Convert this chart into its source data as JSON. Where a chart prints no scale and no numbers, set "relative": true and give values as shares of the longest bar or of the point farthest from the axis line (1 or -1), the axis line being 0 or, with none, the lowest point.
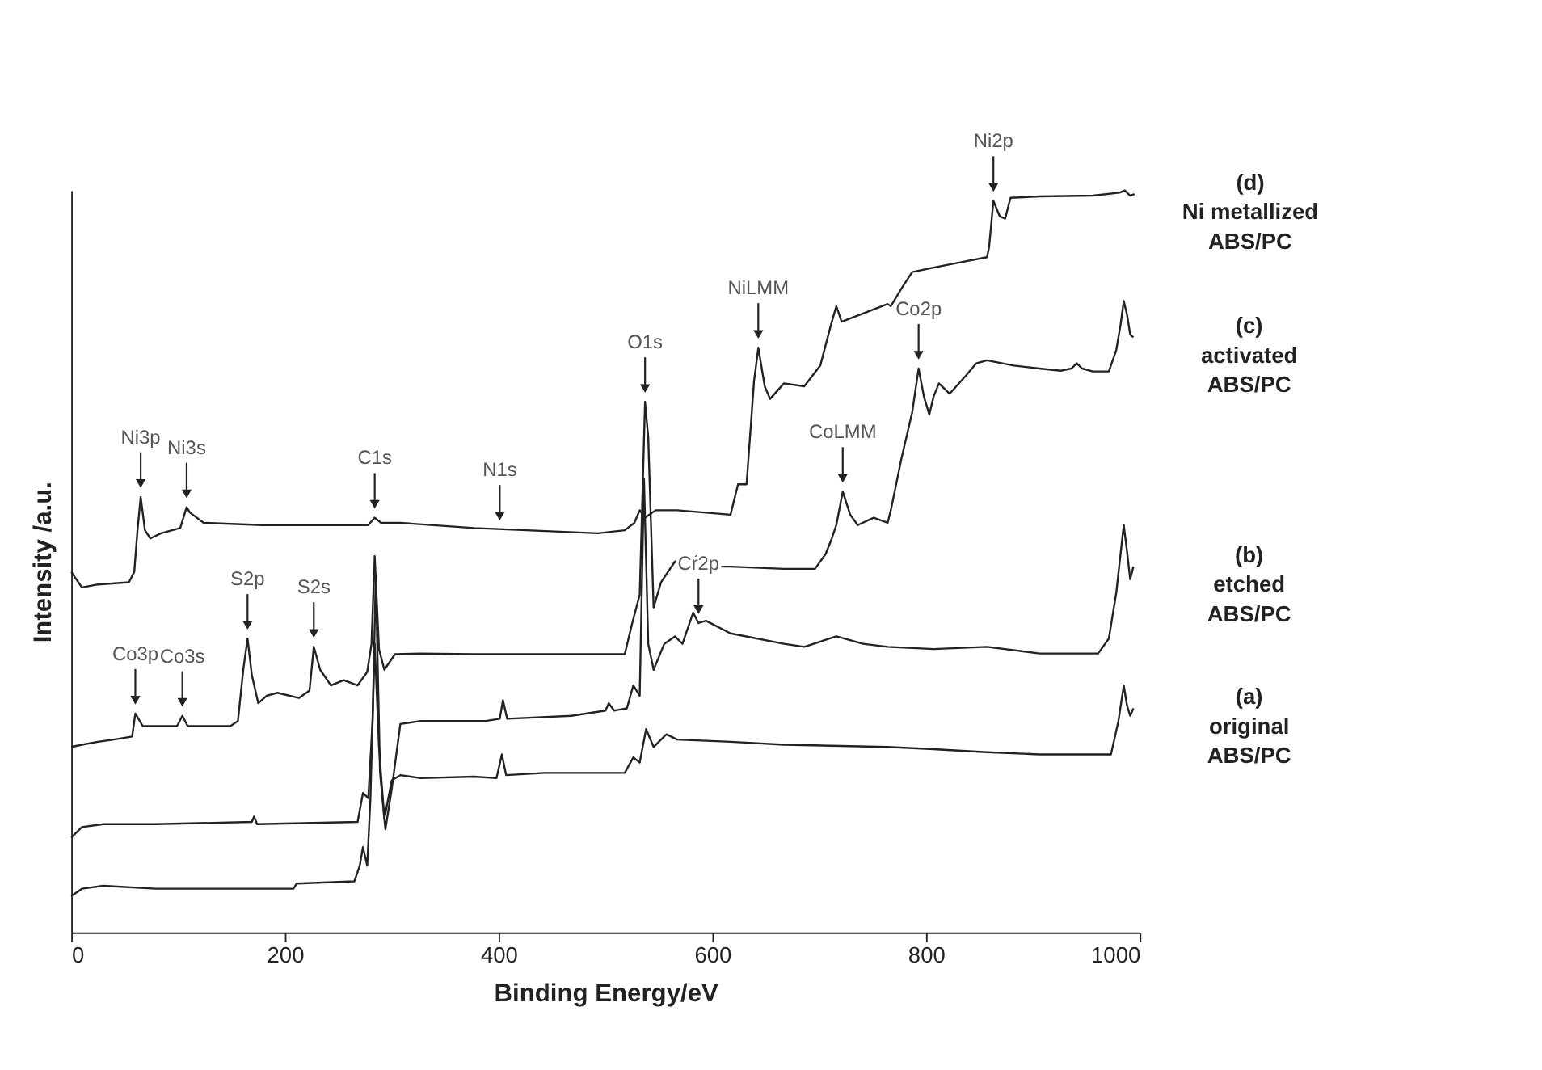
{
  "chart_data": {
    "type": "line",
    "relative": true,
    "xlabel": "Binding Energy/eV",
    "ylabel": "Intensity /a.u.",
    "xlim": [
      0,
      1000
    ],
    "xticks": [
      0,
      200,
      400,
      600,
      800,
      1000
    ],
    "grid": false,
    "series": [
      {
        "name": "(a)\noriginal\nABS/PC",
        "color": "#222222",
        "x": [
          0,
          10,
          30,
          79,
          208,
          211,
          265,
          270,
          273,
          277,
          280,
          284,
          288,
          293,
          300,
          308,
          327,
          377,
          398,
          403,
          407,
          443,
          518,
          526,
          532,
          538,
          545,
          557,
          567,
          617,
          667,
          764,
          807,
          857,
          906,
          973,
          980,
          985,
          988,
          991,
          994
        ],
        "values": [
          0.049,
          0.059,
          0.063,
          0.059,
          0.059,
          0.066,
          0.069,
          0.09,
          0.115,
          0.09,
          0.181,
          0.389,
          0.25,
          0.153,
          0.205,
          0.212,
          0.208,
          0.21,
          0.208,
          0.24,
          0.212,
          0.215,
          0.215,
          0.236,
          0.229,
          0.274,
          0.25,
          0.267,
          0.26,
          0.257,
          0.253,
          0.25,
          0.247,
          0.243,
          0.24,
          0.24,
          0.285,
          0.333,
          0.306,
          0.292,
          0.302
        ]
      },
      {
        "name": "(b)\netched\nABS/PC",
        "color": "#222222",
        "x": [
          0,
          10,
          30,
          79,
          169,
          171,
          174,
          268,
          273,
          278,
          282,
          285,
          289,
          294,
          300,
          308,
          327,
          377,
          388,
          401,
          404,
          408,
          468,
          500,
          503,
          508,
          520,
          526,
          532,
          536,
          540,
          545,
          555,
          565,
          572,
          582,
          587,
          594,
          617,
          667,
          686,
          716,
          741,
          764,
          807,
          857,
          906,
          961,
          971,
          978,
          985,
          988,
          991,
          994
        ],
        "values": [
          0.128,
          0.142,
          0.146,
          0.146,
          0.149,
          0.156,
          0.146,
          0.149,
          0.188,
          0.181,
          0.285,
          0.479,
          0.215,
          0.139,
          0.194,
          0.281,
          0.285,
          0.285,
          0.285,
          0.288,
          0.313,
          0.288,
          0.292,
          0.299,
          0.309,
          0.299,
          0.302,
          0.333,
          0.319,
          0.611,
          0.389,
          0.354,
          0.389,
          0.399,
          0.389,
          0.431,
          0.417,
          0.42,
          0.403,
          0.389,
          0.385,
          0.399,
          0.389,
          0.385,
          0.382,
          0.385,
          0.376,
          0.376,
          0.396,
          0.458,
          0.549,
          0.514,
          0.476,
          0.493
        ]
      },
      {
        "name": "(c)\nactivated\nABS/PC",
        "color": "#222222",
        "x": [
          0,
          10,
          25,
          40,
          57,
          60,
          67,
          99,
          104,
          109,
          149,
          156,
          161,
          165,
          169,
          175,
          183,
          193,
          213,
          223,
          227,
          233,
          243,
          255,
          268,
          277,
          281,
          284,
          288,
          293,
          303,
          327,
          377,
          518,
          525,
          532,
          537,
          540,
          545,
          552,
          565,
          575,
          585,
          590,
          617,
          667,
          696,
          706,
          711,
          716,
          722,
          729,
          736,
          751,
          764,
          767,
          777,
          787,
          793,
          798,
          803,
          807,
          812,
          822,
          837,
          847,
          857,
          882,
          906,
          926,
          936,
          941,
          946,
          956,
          971,
          978,
          982,
          985,
          988,
          991,
          994
        ],
        "values": [
          0.25,
          0.253,
          0.257,
          0.26,
          0.264,
          0.295,
          0.278,
          0.278,
          0.292,
          0.278,
          0.278,
          0.285,
          0.354,
          0.396,
          0.347,
          0.309,
          0.319,
          0.323,
          0.316,
          0.326,
          0.385,
          0.354,
          0.333,
          0.34,
          0.333,
          0.351,
          0.389,
          0.507,
          0.382,
          0.354,
          0.375,
          0.376,
          0.375,
          0.375,
          0.417,
          0.455,
          0.715,
          0.667,
          0.438,
          0.472,
          0.5,
          0.486,
          0.507,
          0.493,
          0.493,
          0.49,
          0.49,
          0.51,
          0.528,
          0.549,
          0.594,
          0.563,
          0.549,
          0.559,
          0.552,
          0.569,
          0.639,
          0.701,
          0.76,
          0.722,
          0.698,
          0.722,
          0.74,
          0.726,
          0.75,
          0.767,
          0.771,
          0.764,
          0.76,
          0.757,
          0.76,
          0.767,
          0.76,
          0.756,
          0.756,
          0.785,
          0.819,
          0.851,
          0.833,
          0.806,
          0.802
        ]
      },
      {
        "name": "(d)\nNi metallized\nABS/PC",
        "color": "#222222",
        "x": [
          0,
          10,
          25,
          54,
          59,
          62,
          65,
          69,
          74,
          84,
          102,
          108,
          111,
          124,
          179,
          278,
          284,
          290,
          308,
          377,
          493,
          518,
          527,
          532,
          537,
          547,
          567,
          617,
          624,
          632,
          639,
          643,
          649,
          654,
          667,
          686,
          701,
          711,
          716,
          721,
          746,
          764,
          767,
          777,
          787,
          807,
          832,
          857,
          859,
          863,
          869,
          874,
          879,
          906,
          956,
          981,
          986,
          991,
          995
        ],
        "values": [
          0.486,
          0.465,
          0.469,
          0.472,
          0.486,
          0.542,
          0.587,
          0.542,
          0.531,
          0.538,
          0.545,
          0.573,
          0.566,
          0.552,
          0.549,
          0.549,
          0.559,
          0.552,
          0.552,
          0.545,
          0.538,
          0.542,
          0.552,
          0.569,
          0.559,
          0.569,
          0.569,
          0.563,
          0.604,
          0.604,
          0.743,
          0.788,
          0.736,
          0.719,
          0.74,
          0.736,
          0.764,
          0.819,
          0.844,
          0.823,
          0.837,
          0.847,
          0.844,
          0.868,
          0.89,
          0.896,
          0.903,
          0.91,
          0.924,
          0.986,
          0.965,
          0.962,
          0.99,
          0.992,
          0.993,
          0.997,
          1.0,
          0.993,
          0.995
        ]
      }
    ],
    "annotations": [
      {
        "text": "Ni3p",
        "x": 65,
        "y": 0.587
      },
      {
        "text": "Ni3s",
        "x": 108,
        "y": 0.573
      },
      {
        "text": "C1s",
        "x": 284,
        "y": 0.559
      },
      {
        "text": "N1s",
        "x": 401,
        "y": 0.543
      },
      {
        "text": "O1s",
        "x": 537,
        "y": 0.715
      },
      {
        "text": "NiLMM",
        "x": 643,
        "y": 0.788
      },
      {
        "text": "Ni2p",
        "x": 863,
        "y": 0.986
      },
      {
        "text": "Co2p",
        "x": 793,
        "y": 0.76
      },
      {
        "text": "CoLMM",
        "x": 722,
        "y": 0.594
      },
      {
        "text": "Cr2p",
        "x": 587,
        "y": 0.417
      },
      {
        "text": "S2p",
        "x": 165,
        "y": 0.396
      },
      {
        "text": "S2s",
        "x": 227,
        "y": 0.385
      },
      {
        "text": "Co3p",
        "x": 60,
        "y": 0.295
      },
      {
        "text": "Co3s",
        "x": 104,
        "y": 0.292
      }
    ]
  }
}
